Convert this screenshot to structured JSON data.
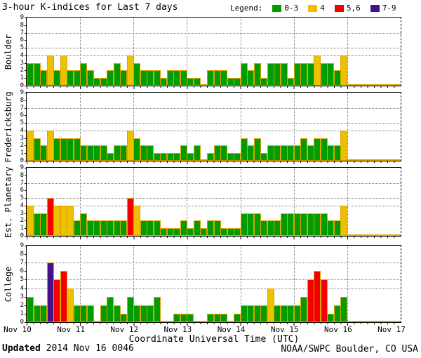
{
  "header": {
    "title": "3-hour K-indices for Last 7 days",
    "legend_label": "Legend:",
    "legend_items": [
      {
        "label": "0-3",
        "color": "#009c00"
      },
      {
        "label": "4",
        "color": "#eec100"
      },
      {
        "label": "5,6",
        "color": "#f40000"
      },
      {
        "label": "7-9",
        "color": "#45108e"
      }
    ]
  },
  "footer": {
    "updated_label": "Updated",
    "updated_value": " 2014 Nov 16 0046",
    "credit": "NOAA/SWPC Boulder, CO USA"
  },
  "chart_data": {
    "type": "bar",
    "title": "3-hour K-indices for Last 7 days",
    "xlabel": "Coordinate Universal Time (UTC)",
    "x_tick_labels": [
      "Nov 10",
      "Nov 11",
      "Nov 12",
      "Nov 13",
      "Nov 14",
      "Nov 15",
      "Nov 16",
      "Nov 17"
    ],
    "interval_hours": 3,
    "bars_per_day": 8,
    "ylim": [
      0,
      9
    ],
    "y_ticks": [
      0,
      1,
      2,
      3,
      4,
      5,
      6,
      7,
      8,
      9
    ],
    "dotted_gridlines_at_k": [
      4,
      5,
      7
    ],
    "grid": true,
    "legend_position": "top-right",
    "bar_outline_color": "#d8a400",
    "color_scale": [
      {
        "k_range": "0-3",
        "color": "#009c00"
      },
      {
        "k_range": "4",
        "color": "#eec100"
      },
      {
        "k_range": "5,6",
        "color": "#f40000"
      },
      {
        "k_range": "7-9",
        "color": "#45108e"
      }
    ],
    "panels": [
      {
        "station": "Boulder",
        "k_values": {
          "Nov 10": [
            3,
            3,
            2,
            4,
            2,
            4,
            2,
            2
          ],
          "Nov 11": [
            3,
            2,
            1,
            1,
            2,
            3,
            2,
            4
          ],
          "Nov 12": [
            3,
            2,
            2,
            2,
            1,
            2,
            2,
            2
          ],
          "Nov 13": [
            1,
            1,
            0,
            2,
            2,
            2,
            1,
            1
          ],
          "Nov 14": [
            3,
            2,
            3,
            1,
            3,
            3,
            3,
            1
          ],
          "Nov 15": [
            3,
            3,
            3,
            4,
            3,
            3,
            2,
            4
          ],
          "Nov 16": [
            0,
            0,
            0,
            0,
            0,
            0,
            0,
            0
          ]
        }
      },
      {
        "station": "Fredericksburg",
        "k_values": {
          "Nov 10": [
            4,
            3,
            2,
            4,
            3,
            3,
            3,
            3
          ],
          "Nov 11": [
            2,
            2,
            2,
            2,
            1,
            2,
            2,
            4
          ],
          "Nov 12": [
            3,
            2,
            2,
            1,
            1,
            1,
            1,
            2
          ],
          "Nov 13": [
            1,
            2,
            0,
            1,
            2,
            2,
            1,
            1
          ],
          "Nov 14": [
            3,
            2,
            3,
            1,
            2,
            2,
            2,
            2
          ],
          "Nov 15": [
            2,
            3,
            2,
            3,
            3,
            2,
            2,
            4
          ],
          "Nov 16": [
            0,
            0,
            0,
            0,
            0,
            0,
            0,
            0
          ]
        }
      },
      {
        "station": "Est. Planetary",
        "k_values": {
          "Nov 10": [
            4,
            3,
            3,
            5,
            4,
            4,
            4,
            2
          ],
          "Nov 11": [
            3,
            2,
            2,
            2,
            2,
            2,
            2,
            5
          ],
          "Nov 12": [
            4,
            2,
            2,
            2,
            1,
            1,
            1,
            2
          ],
          "Nov 13": [
            1,
            2,
            1,
            2,
            2,
            1,
            1,
            1
          ],
          "Nov 14": [
            3,
            3,
            3,
            2,
            2,
            2,
            3,
            3
          ],
          "Nov 15": [
            3,
            3,
            3,
            3,
            3,
            2,
            2,
            4
          ],
          "Nov 16": [
            0,
            0,
            0,
            0,
            0,
            0,
            0,
            0
          ]
        }
      },
      {
        "station": "College",
        "k_values": {
          "Nov 10": [
            3,
            2,
            2,
            7,
            5,
            6,
            4,
            2
          ],
          "Nov 11": [
            2,
            2,
            0,
            2,
            3,
            2,
            1,
            3
          ],
          "Nov 12": [
            2,
            2,
            2,
            3,
            0,
            0,
            1,
            1
          ],
          "Nov 13": [
            1,
            0,
            0,
            1,
            1,
            1,
            0,
            1
          ],
          "Nov 14": [
            2,
            2,
            2,
            2,
            4,
            2,
            2,
            2
          ],
          "Nov 15": [
            2,
            3,
            5,
            6,
            5,
            1,
            2,
            3
          ],
          "Nov 16": [
            0,
            0,
            0,
            0,
            0,
            0,
            0,
            0
          ]
        }
      }
    ]
  }
}
